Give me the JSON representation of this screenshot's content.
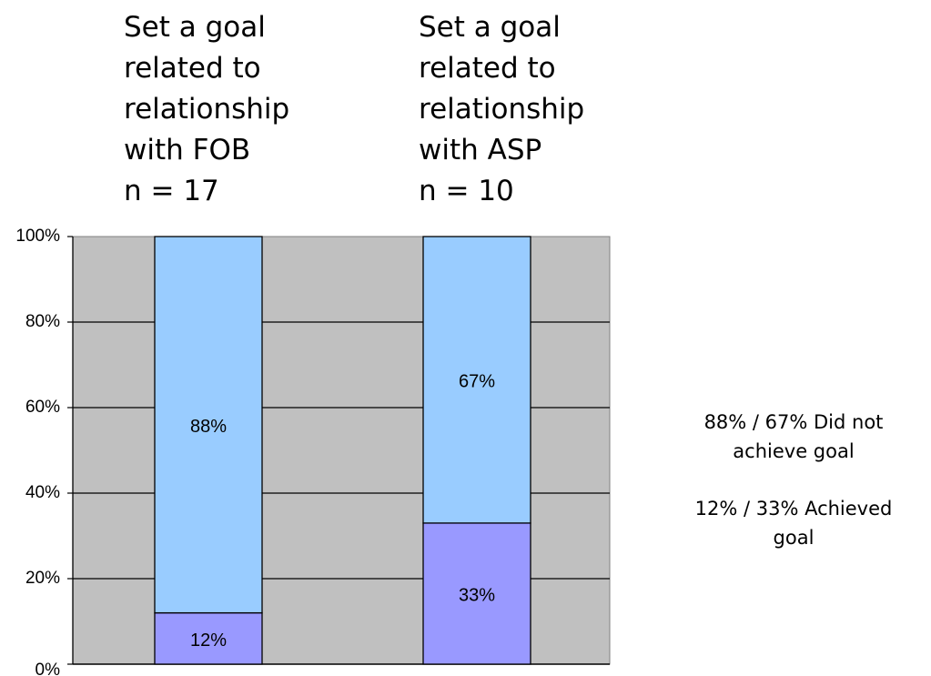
{
  "chart_data": {
    "type": "bar",
    "stacked": true,
    "percent": true,
    "categories": [
      [
        "Set a goal",
        "related to",
        "relationship",
        "with FOB",
        "n = 17"
      ],
      [
        "Set a goal",
        "related to",
        "relationship",
        "with ASP",
        "n = 10"
      ]
    ],
    "series": [
      {
        "key": "achieved",
        "values": [
          12,
          33
        ],
        "labels": [
          "12%",
          "33%"
        ],
        "color": "#9999ff"
      },
      {
        "key": "not_achieved",
        "values": [
          88,
          67
        ],
        "labels": [
          "88%",
          "67%"
        ],
        "color": "#99ccff"
      }
    ],
    "ylim": [
      0,
      100
    ],
    "yticks": [
      "0%",
      "20%",
      "40%",
      "60%",
      "80%",
      "100%"
    ],
    "grid": true,
    "plot_background": "#c0c0c0",
    "legend_position": "right",
    "legend": [
      [
        "88% / 67% Did not",
        "achieve goal"
      ],
      [
        "12% / 33% Achieved",
        "goal"
      ]
    ]
  }
}
